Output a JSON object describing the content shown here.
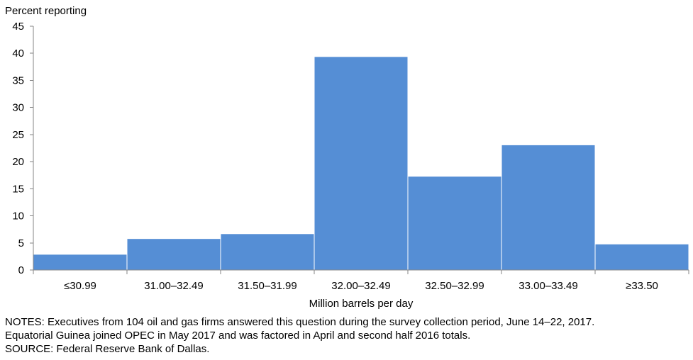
{
  "chart_data": {
    "type": "bar",
    "ylabel": "Percent reporting",
    "xlabel": "Million barrels per day",
    "categories": [
      "≤30.99",
      "31.00–32.49",
      "31.50–31.99",
      "32.00–32.49",
      "32.50–32.99",
      "33.00–33.49",
      "≥33.50"
    ],
    "values": [
      2.9,
      5.8,
      6.7,
      39.4,
      17.3,
      23.1,
      4.8
    ],
    "ylim": [
      0,
      45
    ],
    "yticks": [
      0,
      5,
      10,
      15,
      20,
      25,
      30,
      35,
      40,
      45
    ],
    "grid": false,
    "colors": {
      "bar": "#558ED5",
      "bar_edge": "#ffffff",
      "axis": "#868686"
    }
  },
  "notes": {
    "line1": "NOTES: Executives from 104 oil and gas firms answered this question during the survey collection period, June 14–22, 2017.",
    "line2": "Equatorial Guinea joined OPEC in May 2017 and was factored in April and second half 2016 totals.",
    "line3": "SOURCE: Federal Reserve Bank of Dallas."
  }
}
